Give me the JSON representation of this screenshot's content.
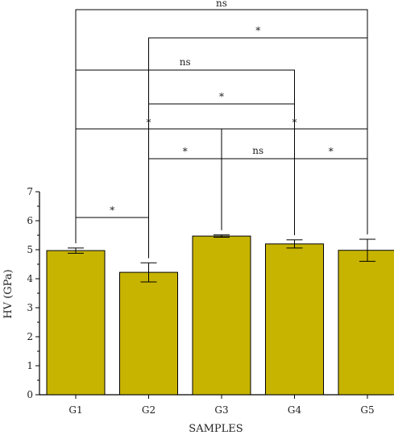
{
  "chart_data": {
    "type": "bar",
    "title": "",
    "xlabel": "SAMPLES",
    "ylabel": "HV (GPa)",
    "ylim": [
      0,
      7
    ],
    "yticks": [
      "0",
      "1",
      "2",
      "3",
      "4",
      "5",
      "6",
      "7"
    ],
    "categories": [
      "G1",
      "G2",
      "G3",
      "G4",
      "G5"
    ],
    "values": [
      4.97,
      4.22,
      5.47,
      5.2,
      4.98
    ],
    "errors": [
      0.09,
      0.33,
      0.04,
      0.14,
      0.38
    ],
    "bar_color": "#c7b400",
    "comparisons": [
      {
        "from": "G1",
        "to": "G2",
        "label": "*"
      },
      {
        "from": "G2",
        "to": "G3",
        "label": "*"
      },
      {
        "from": "G3",
        "to": "G4",
        "label": "ns"
      },
      {
        "from": "G4",
        "to": "G5",
        "label": "*"
      },
      {
        "from": "G1",
        "to": "G3",
        "label": "*"
      },
      {
        "from": "G3",
        "to": "G5",
        "label": "*"
      },
      {
        "from": "G2",
        "to": "G4",
        "label": "*"
      },
      {
        "from": "G1",
        "to": "G4",
        "label": "ns"
      },
      {
        "from": "G2",
        "to": "G5",
        "label": "*"
      },
      {
        "from": "G1",
        "to": "G5",
        "label": "ns"
      }
    ]
  }
}
